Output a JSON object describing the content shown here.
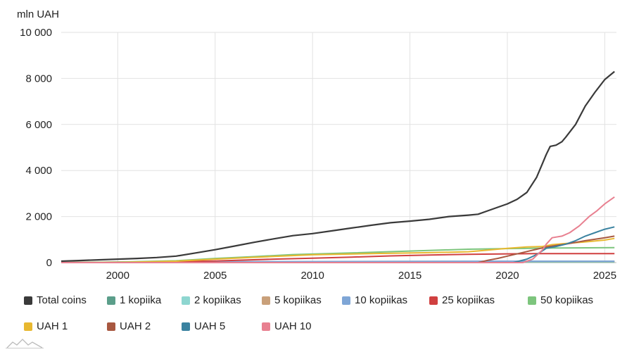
{
  "chart_data": {
    "type": "line",
    "ylabel": "mln UAH",
    "xlim": [
      1997.1,
      2025.6
    ],
    "ylim": [
      0,
      10000
    ],
    "x_ticks": [
      2000,
      2005,
      2010,
      2015,
      2020,
      2025
    ],
    "y_ticks": [
      {
        "value": 0,
        "label": "0"
      },
      {
        "value": 2000,
        "label": "2 000"
      },
      {
        "value": 4000,
        "label": "4 000"
      },
      {
        "value": 6000,
        "label": "6 000"
      },
      {
        "value": 8000,
        "label": "8 000"
      },
      {
        "value": 10000,
        "label": "10 000"
      }
    ],
    "grid": true,
    "legend_position": "bottom",
    "series": [
      {
        "name": "Total coins",
        "color": "#3a3a3a",
        "points": [
          [
            1997.1,
            60
          ],
          [
            1998,
            90
          ],
          [
            1999,
            120
          ],
          [
            2000,
            150
          ],
          [
            2001,
            180
          ],
          [
            2002,
            220
          ],
          [
            2003,
            280
          ],
          [
            2004,
            420
          ],
          [
            2005,
            560
          ],
          [
            2006,
            720
          ],
          [
            2007,
            880
          ],
          [
            2008,
            1030
          ],
          [
            2009,
            1170
          ],
          [
            2010,
            1260
          ],
          [
            2011,
            1380
          ],
          [
            2012,
            1500
          ],
          [
            2013,
            1620
          ],
          [
            2014,
            1730
          ],
          [
            2015,
            1800
          ],
          [
            2016,
            1880
          ],
          [
            2017,
            2000
          ],
          [
            2018,
            2060
          ],
          [
            2018.5,
            2100
          ],
          [
            2019,
            2250
          ],
          [
            2019.5,
            2400
          ],
          [
            2020,
            2550
          ],
          [
            2020.5,
            2750
          ],
          [
            2021,
            3050
          ],
          [
            2021.5,
            3700
          ],
          [
            2021.8,
            4300
          ],
          [
            2022,
            4700
          ],
          [
            2022.2,
            5050
          ],
          [
            2022.5,
            5100
          ],
          [
            2022.8,
            5250
          ],
          [
            2023,
            5450
          ],
          [
            2023.5,
            6000
          ],
          [
            2024,
            6800
          ],
          [
            2024.5,
            7400
          ],
          [
            2025,
            7950
          ],
          [
            2025.5,
            8300
          ]
        ]
      },
      {
        "name": "1 kopiika",
        "color": "#5b9e8a",
        "points": [
          [
            1997.1,
            0
          ],
          [
            2000,
            5
          ],
          [
            2005,
            10
          ],
          [
            2010,
            15
          ],
          [
            2015,
            20
          ],
          [
            2020,
            22
          ],
          [
            2025.5,
            22
          ]
        ]
      },
      {
        "name": "2 kopiikas",
        "color": "#8ed6d0",
        "points": [
          [
            1997.1,
            0
          ],
          [
            2000,
            10
          ],
          [
            2005,
            20
          ],
          [
            2010,
            28
          ],
          [
            2015,
            35
          ],
          [
            2020,
            38
          ],
          [
            2025.5,
            38
          ]
        ]
      },
      {
        "name": "5 kopiikas",
        "color": "#c9a07a",
        "points": [
          [
            1997.1,
            0
          ],
          [
            2000,
            15
          ],
          [
            2005,
            30
          ],
          [
            2010,
            40
          ],
          [
            2015,
            48
          ],
          [
            2020,
            52
          ],
          [
            2025.5,
            55
          ]
        ]
      },
      {
        "name": "10 kopiikas",
        "color": "#7fa6d6",
        "points": [
          [
            1997.1,
            0
          ],
          [
            2000,
            15
          ],
          [
            2005,
            35
          ],
          [
            2010,
            45
          ],
          [
            2015,
            55
          ],
          [
            2020,
            60
          ],
          [
            2025.5,
            62
          ]
        ]
      },
      {
        "name": "25 kopiikas",
        "color": "#d04040",
        "points": [
          [
            1997.1,
            0
          ],
          [
            2000,
            20
          ],
          [
            2005,
            70
          ],
          [
            2008,
            150
          ],
          [
            2010,
            190
          ],
          [
            2012,
            240
          ],
          [
            2014,
            290
          ],
          [
            2016,
            330
          ],
          [
            2018,
            360
          ],
          [
            2020,
            380
          ],
          [
            2022,
            390
          ],
          [
            2025.5,
            390
          ]
        ]
      },
      {
        "name": "50 kopiikas",
        "color": "#7dc57d",
        "points": [
          [
            1997.1,
            0
          ],
          [
            2000,
            20
          ],
          [
            2003,
            80
          ],
          [
            2005,
            180
          ],
          [
            2007,
            260
          ],
          [
            2009,
            350
          ],
          [
            2012,
            420
          ],
          [
            2015,
            500
          ],
          [
            2018,
            580
          ],
          [
            2020,
            610
          ],
          [
            2022,
            630
          ],
          [
            2025.5,
            650
          ]
        ]
      },
      {
        "name": "UAH 1",
        "color": "#e8b830",
        "points": [
          [
            1997.1,
            0
          ],
          [
            2000,
            10
          ],
          [
            2003,
            60
          ],
          [
            2005,
            150
          ],
          [
            2007,
            230
          ],
          [
            2010,
            340
          ],
          [
            2013,
            390
          ],
          [
            2016,
            430
          ],
          [
            2018,
            470
          ],
          [
            2019,
            540
          ],
          [
            2020,
            620
          ],
          [
            2021,
            680
          ],
          [
            2021.8,
            700
          ],
          [
            2022.3,
            780
          ],
          [
            2023,
            830
          ],
          [
            2024,
            900
          ],
          [
            2025,
            980
          ],
          [
            2025.5,
            1050
          ]
        ]
      },
      {
        "name": "UAH 2",
        "color": "#a85840",
        "points": [
          [
            1997.1,
            0
          ],
          [
            2018.5,
            0
          ],
          [
            2019,
            100
          ],
          [
            2019.5,
            180
          ],
          [
            2020,
            280
          ],
          [
            2021,
            480
          ],
          [
            2022,
            680
          ],
          [
            2023,
            800
          ],
          [
            2024,
            950
          ],
          [
            2025,
            1080
          ],
          [
            2025.5,
            1150
          ]
        ]
      },
      {
        "name": "UAH 5",
        "color": "#3a82a0",
        "points": [
          [
            1997.1,
            0
          ],
          [
            2020.3,
            0
          ],
          [
            2021,
            150
          ],
          [
            2021.5,
            350
          ],
          [
            2022,
            620
          ],
          [
            2022.5,
            700
          ],
          [
            2023,
            800
          ],
          [
            2023.5,
            950
          ],
          [
            2024,
            1150
          ],
          [
            2024.5,
            1300
          ],
          [
            2025,
            1450
          ],
          [
            2025.5,
            1550
          ]
        ]
      },
      {
        "name": "UAH 10",
        "color": "#e88090",
        "points": [
          [
            1997.1,
            0
          ],
          [
            2020.8,
            0
          ],
          [
            2021.3,
            150
          ],
          [
            2021.8,
            550
          ],
          [
            2022,
            800
          ],
          [
            2022.3,
            1080
          ],
          [
            2022.8,
            1150
          ],
          [
            2023.2,
            1300
          ],
          [
            2023.7,
            1600
          ],
          [
            2024.2,
            2000
          ],
          [
            2024.6,
            2250
          ],
          [
            2025,
            2550
          ],
          [
            2025.5,
            2850
          ]
        ]
      }
    ]
  }
}
